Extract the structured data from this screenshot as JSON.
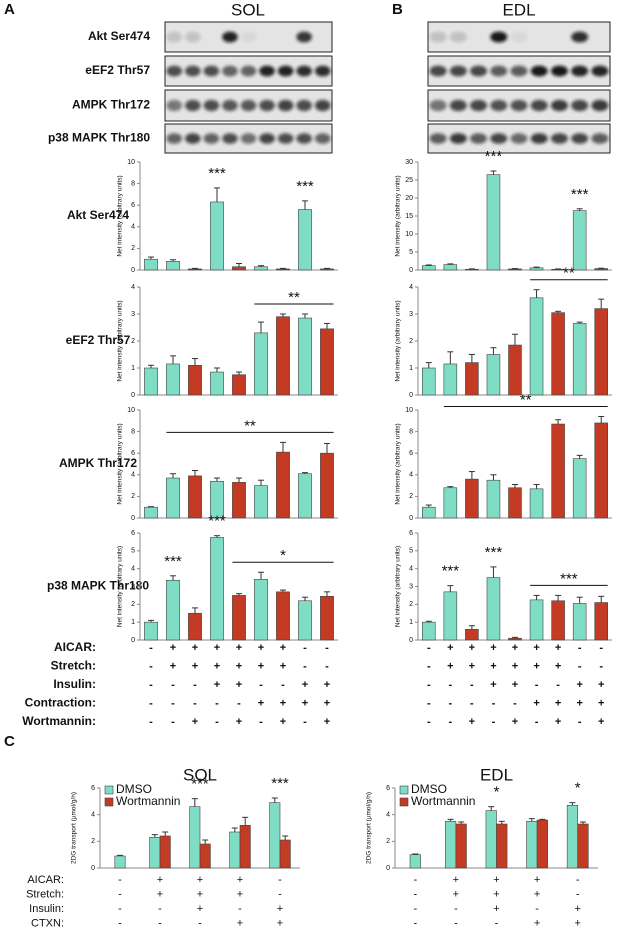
{
  "panel_labels": [
    "A",
    "B",
    "C"
  ],
  "muscles": [
    "SOL",
    "EDL"
  ],
  "proteins": [
    "Akt Ser474",
    "eEF2 Thr57",
    "AMPK Thr172",
    "p38 MAPK Thr180"
  ],
  "bar_colors": [
    "#7fdcc5",
    "#7fdcc5",
    "#c23b22",
    "#7fdcc5",
    "#c23b22",
    "#7fdcc5",
    "#c23b22",
    "#7fdcc5",
    "#c23b22"
  ],
  "treatments_ab": [
    {
      "label": "AICAR:",
      "signs": [
        "-",
        "+",
        "+",
        "+",
        "+",
        "+",
        "+",
        "-",
        "-"
      ]
    },
    {
      "label": "Stretch:",
      "signs": [
        "-",
        "+",
        "+",
        "+",
        "+",
        "+",
        "+",
        "-",
        "-"
      ]
    },
    {
      "label": "Insulin:",
      "signs": [
        "-",
        "-",
        "-",
        "+",
        "+",
        "-",
        "-",
        "+",
        "+"
      ]
    },
    {
      "label": "Contraction:",
      "signs": [
        "-",
        "-",
        "-",
        "-",
        "-",
        "+",
        "+",
        "+",
        "+"
      ]
    },
    {
      "label": "Wortmannin:",
      "signs": [
        "-",
        "-",
        "+",
        "-",
        "+",
        "-",
        "+",
        "-",
        "+"
      ]
    }
  ],
  "treatments_c": [
    {
      "label": "AICAR:",
      "signs": [
        "-",
        "+",
        "+",
        "+",
        "-"
      ]
    },
    {
      "label": "Stretch:",
      "signs": [
        "-",
        "+",
        "+",
        "+",
        "-"
      ]
    },
    {
      "label": "Insulin:",
      "signs": [
        "-",
        "-",
        "+",
        "-",
        "+"
      ]
    },
    {
      "label": "CTXN:",
      "signs": [
        "-",
        "-",
        "-",
        "+",
        "+"
      ]
    }
  ],
  "chart_data": [
    {
      "type": "bar",
      "y_label": "Net intensity (arbitrary units)",
      "ylim": [
        0,
        10
      ],
      "yticks": [
        0,
        2,
        4,
        6,
        8,
        10
      ],
      "values": [
        1.0,
        0.8,
        0.1,
        6.3,
        0.3,
        0.3,
        0.1,
        5.6,
        0.1
      ],
      "errors": [
        0.2,
        0.15,
        0.05,
        1.3,
        0.3,
        0.1,
        0.05,
        0.8,
        0.05
      ],
      "annotations": [
        {
          "text": "***",
          "span": [
            3,
            3
          ]
        },
        {
          "text": "***",
          "span": [
            7,
            7
          ]
        }
      ]
    },
    {
      "type": "bar",
      "y_label": "Net intensity (arbitrary units)",
      "ylim": [
        0,
        4
      ],
      "yticks": [
        0,
        1,
        2,
        3,
        4
      ],
      "values": [
        1.0,
        1.15,
        1.1,
        0.85,
        0.75,
        2.3,
        2.9,
        2.85,
        2.45
      ],
      "errors": [
        0.1,
        0.3,
        0.25,
        0.15,
        0.1,
        0.4,
        0.1,
        0.15,
        0.2
      ],
      "annotations": [
        {
          "text": "**",
          "span": [
            5,
            8
          ]
        }
      ]
    },
    {
      "type": "bar",
      "y_label": "Net intensity (arbitrary units)",
      "ylim": [
        0,
        10
      ],
      "yticks": [
        0,
        2,
        4,
        6,
        8,
        10
      ],
      "values": [
        1.0,
        3.7,
        3.9,
        3.4,
        3.3,
        3.0,
        6.1,
        4.1,
        6.0
      ],
      "errors": [
        0.05,
        0.4,
        0.5,
        0.3,
        0.4,
        0.5,
        0.9,
        0.1,
        0.9
      ],
      "annotations": [
        {
          "text": "**",
          "span": [
            1,
            8
          ]
        }
      ]
    },
    {
      "type": "bar",
      "y_label": "Net intensity (arbitrary units)",
      "ylim": [
        0,
        6
      ],
      "yticks": [
        0,
        1,
        2,
        3,
        4,
        5,
        6
      ],
      "values": [
        1.0,
        3.35,
        1.5,
        5.75,
        2.5,
        3.4,
        2.7,
        2.2,
        2.45
      ],
      "errors": [
        0.1,
        0.25,
        0.3,
        0.1,
        0.1,
        0.4,
        0.1,
        0.2,
        0.25
      ],
      "annotations": [
        {
          "text": "***",
          "span": [
            1,
            1
          ]
        },
        {
          "text": "***",
          "span": [
            3,
            3
          ]
        },
        {
          "text": "*",
          "span": [
            4,
            8
          ]
        }
      ]
    },
    {
      "type": "bar",
      "y_label": "Net intensity (arbitrary units)",
      "ylim": [
        0,
        30
      ],
      "yticks": [
        0,
        5,
        10,
        15,
        20,
        25,
        30
      ],
      "values": [
        1.2,
        1.5,
        0.2,
        26.5,
        0.3,
        0.6,
        0.2,
        16.5,
        0.4
      ],
      "errors": [
        0.2,
        0.2,
        0.1,
        1.0,
        0.1,
        0.2,
        0.1,
        0.5,
        0.1
      ],
      "annotations": [
        {
          "text": "***",
          "span": [
            3,
            3
          ]
        },
        {
          "text": "***",
          "span": [
            7,
            7
          ]
        }
      ]
    },
    {
      "type": "bar",
      "y_label": "Net intensity (arbitrary units)",
      "ylim": [
        0,
        4
      ],
      "yticks": [
        0,
        1,
        2,
        3,
        4
      ],
      "values": [
        1.0,
        1.15,
        1.2,
        1.5,
        1.85,
        3.6,
        3.05,
        2.65,
        3.2
      ],
      "errors": [
        0.2,
        0.45,
        0.3,
        0.25,
        0.4,
        0.3,
        0.05,
        0.05,
        0.35
      ],
      "annotations": [
        {
          "text": "**",
          "span": [
            5,
            8
          ]
        }
      ]
    },
    {
      "type": "bar",
      "y_label": "Net intensity (arbitrary units)",
      "ylim": [
        0,
        10
      ],
      "yticks": [
        0,
        2,
        4,
        6,
        8,
        10
      ],
      "values": [
        1.0,
        2.8,
        3.6,
        3.5,
        2.8,
        2.7,
        8.7,
        5.5,
        8.8
      ],
      "errors": [
        0.2,
        0.1,
        0.7,
        0.5,
        0.3,
        0.4,
        0.4,
        0.3,
        0.6
      ],
      "annotations": [
        {
          "text": "**",
          "span": [
            1,
            8
          ]
        }
      ]
    },
    {
      "type": "bar",
      "y_label": "Net intensity (arbitrary units)",
      "ylim": [
        0,
        6
      ],
      "yticks": [
        0,
        1,
        2,
        3,
        4,
        5,
        6
      ],
      "values": [
        1.0,
        2.7,
        0.6,
        3.5,
        0.1,
        2.25,
        2.2,
        2.05,
        2.1
      ],
      "errors": [
        0.05,
        0.35,
        0.2,
        0.6,
        0.05,
        0.25,
        0.3,
        0.35,
        0.35
      ],
      "annotations": [
        {
          "text": "***",
          "span": [
            1,
            1
          ]
        },
        {
          "text": "***",
          "span": [
            3,
            3
          ]
        },
        {
          "text": "***",
          "span": [
            5,
            8
          ]
        }
      ]
    },
    {
      "type": "grouped_bar",
      "title": "SOL",
      "y_label": "2DG transport (µmol/g/h)",
      "ylim": [
        0,
        6
      ],
      "yticks": [
        0,
        2,
        4,
        6
      ],
      "series": [
        {
          "name": "DMSO",
          "color": "#7fdcc5",
          "values": [
            0.9,
            2.3,
            4.6,
            2.7,
            4.9
          ],
          "errors": [
            0.05,
            0.2,
            0.6,
            0.3,
            0.35
          ]
        },
        {
          "name": "Wortmannin",
          "color": "#c23b22",
          "values": [
            null,
            2.4,
            1.8,
            3.2,
            2.1
          ],
          "errors": [
            null,
            0.3,
            0.3,
            0.6,
            0.3
          ]
        }
      ],
      "annotations": [
        {
          "text": "***",
          "span": [
            2,
            2
          ]
        },
        {
          "text": "***",
          "span": [
            4,
            4
          ]
        }
      ]
    },
    {
      "type": "grouped_bar",
      "title": "EDL",
      "y_label": "2DG transport (µmol/g/h)",
      "ylim": [
        0,
        6
      ],
      "yticks": [
        0,
        2,
        4,
        6
      ],
      "series": [
        {
          "name": "DMSO",
          "color": "#7fdcc5",
          "values": [
            1.0,
            3.5,
            4.3,
            3.5,
            4.7
          ],
          "errors": [
            0.05,
            0.15,
            0.3,
            0.2,
            0.2
          ]
        },
        {
          "name": "Wortmannin",
          "color": "#c23b22",
          "values": [
            null,
            3.3,
            3.3,
            3.6,
            3.3
          ],
          "errors": [
            null,
            0.15,
            0.2,
            0.05,
            0.15
          ]
        }
      ],
      "annotations": [
        {
          "text": "*",
          "span": [
            2,
            2
          ]
        },
        {
          "text": "*",
          "span": [
            4,
            4
          ]
        }
      ]
    }
  ]
}
